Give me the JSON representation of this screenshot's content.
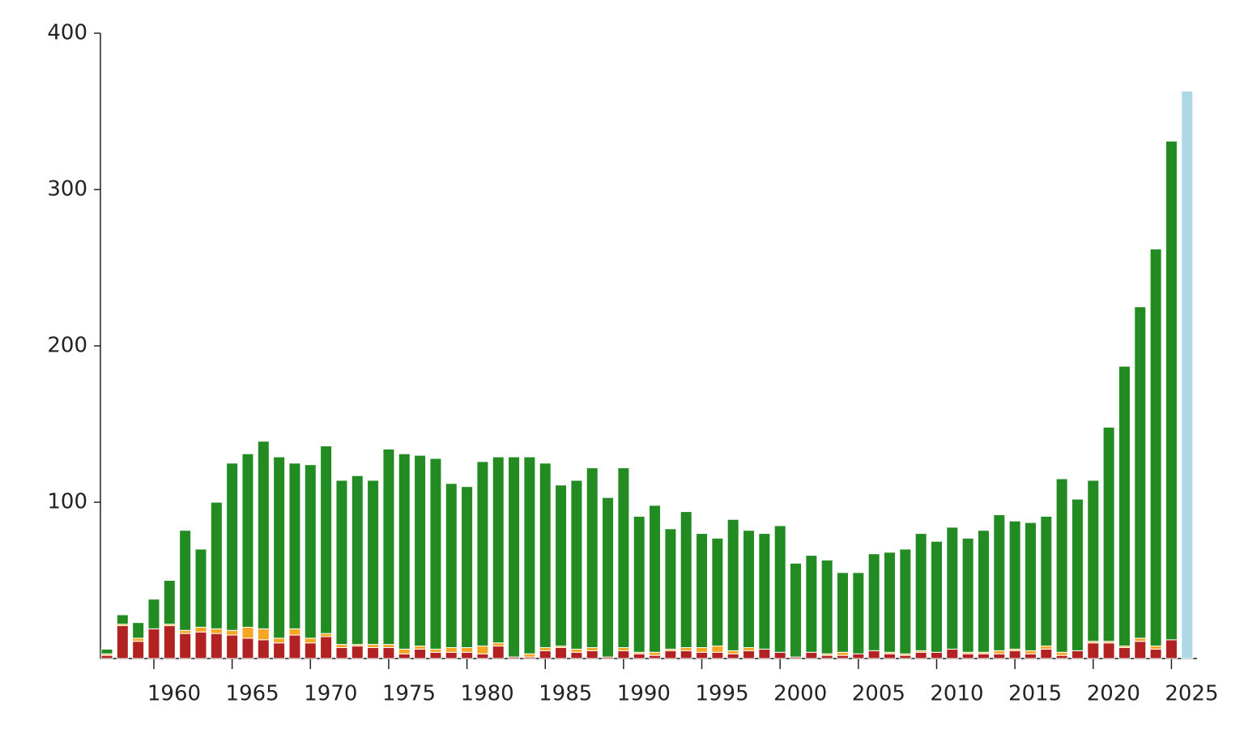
{
  "chart_data": {
    "type": "stacked_bar",
    "categories": [
      null,
      null,
      null,
      "1960",
      null,
      null,
      null,
      null,
      "1965",
      null,
      null,
      null,
      null,
      "1970",
      null,
      null,
      null,
      null,
      "1975",
      null,
      null,
      null,
      null,
      "1980",
      null,
      null,
      null,
      null,
      "1985",
      null,
      null,
      null,
      null,
      "1990",
      null,
      null,
      null,
      null,
      "1995",
      null,
      null,
      null,
      null,
      "2000",
      null,
      null,
      null,
      null,
      "2005",
      null,
      null,
      null,
      null,
      "2010",
      null,
      null,
      null,
      null,
      "2015",
      null,
      null,
      null,
      null,
      "2020",
      null,
      null,
      null,
      null,
      "2025",
      null
    ],
    "series": [
      {
        "color": "#b22222",
        "values": [
          2,
          21,
          11,
          19,
          21,
          16,
          17,
          16,
          15,
          13,
          12,
          10,
          15,
          10,
          14,
          7,
          8,
          7,
          7,
          3,
          6,
          4,
          4,
          4,
          3,
          8,
          1,
          1,
          5,
          7,
          4,
          5,
          1,
          5,
          3,
          2,
          5,
          5,
          4,
          4,
          3,
          5,
          6,
          4,
          1,
          4,
          2,
          2,
          3,
          5,
          3,
          2,
          4,
          4,
          6,
          3,
          3,
          3,
          5,
          3,
          6,
          2,
          5,
          10,
          10,
          7,
          11,
          6,
          12,
          null
        ]
      },
      {
        "color": "#f5a623",
        "values": [
          1,
          1,
          2,
          0,
          1,
          2,
          3,
          3,
          3,
          7,
          7,
          3,
          4,
          3,
          2,
          2,
          1,
          2,
          2,
          3,
          2,
          2,
          3,
          3,
          5,
          2,
          0,
          2,
          2,
          1,
          2,
          2,
          0,
          2,
          1,
          2,
          1,
          2,
          3,
          4,
          2,
          2,
          0,
          0,
          0,
          0,
          1,
          2,
          0,
          0,
          1,
          1,
          1,
          0,
          0,
          1,
          1,
          2,
          1,
          2,
          2,
          2,
          0,
          1,
          1,
          1,
          2,
          2,
          0,
          null
        ]
      },
      {
        "color": "#228b22",
        "values": [
          3,
          6,
          10,
          19,
          28,
          64,
          50,
          81,
          107,
          111,
          120,
          116,
          106,
          111,
          120,
          105,
          108,
          105,
          125,
          125,
          122,
          122,
          105,
          103,
          118,
          119,
          128,
          126,
          118,
          103,
          108,
          115,
          102,
          115,
          87,
          94,
          77,
          87,
          73,
          69,
          84,
          75,
          74,
          81,
          60,
          62,
          60,
          51,
          52,
          62,
          64,
          67,
          75,
          71,
          78,
          73,
          78,
          87,
          82,
          82,
          83,
          111,
          97,
          103,
          137,
          179,
          212,
          254,
          319,
          null
        ]
      },
      {
        "color": "#add8e6",
        "values": [
          null,
          null,
          null,
          null,
          null,
          null,
          null,
          null,
          null,
          null,
          null,
          null,
          null,
          null,
          null,
          null,
          null,
          null,
          null,
          null,
          null,
          null,
          null,
          null,
          null,
          null,
          null,
          null,
          null,
          null,
          null,
          null,
          null,
          null,
          null,
          null,
          null,
          null,
          null,
          null,
          null,
          null,
          null,
          null,
          null,
          null,
          null,
          null,
          null,
          null,
          null,
          null,
          null,
          null,
          null,
          null,
          null,
          null,
          null,
          null,
          null,
          null,
          null,
          null,
          null,
          null,
          null,
          null,
          null,
          363
        ]
      }
    ],
    "ylim": [
      0,
      400
    ],
    "yticks": [
      100,
      200,
      300,
      400
    ]
  }
}
